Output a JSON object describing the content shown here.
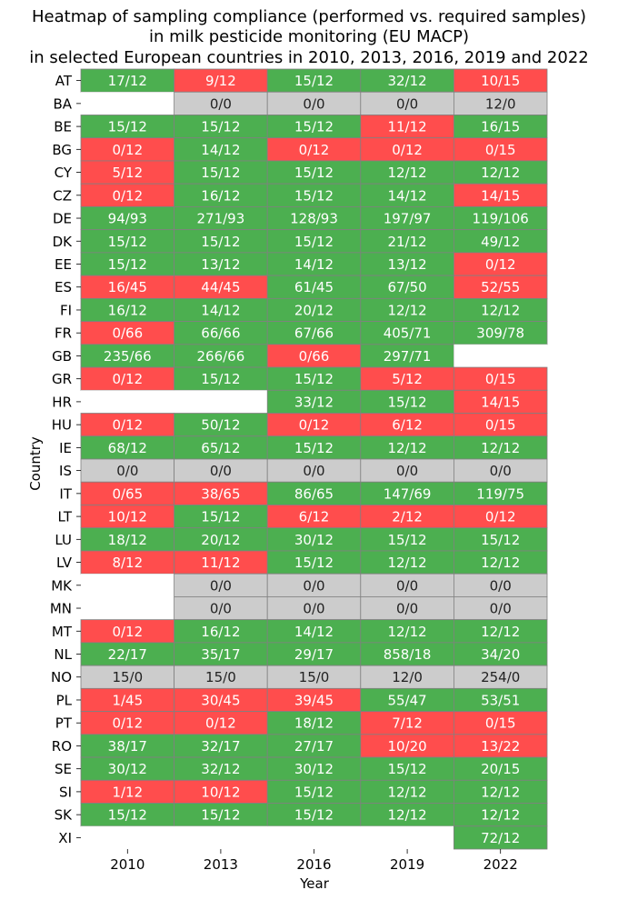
{
  "chart_data": {
    "type": "heatmap",
    "title_lines": [
      "Heatmap of sampling compliance (performed vs. required samples)",
      "in milk pesticide monitoring (EU MACP)",
      "in selected European countries in 2010, 2013, 2016, 2019 and 2022"
    ],
    "xlabel": "Year",
    "ylabel": "Country",
    "x_categories": [
      "2010",
      "2013",
      "2016",
      "2019",
      "2022"
    ],
    "y_categories": [
      "AT",
      "BA",
      "BE",
      "BG",
      "CY",
      "CZ",
      "DE",
      "DK",
      "EE",
      "ES",
      "FI",
      "FR",
      "GB",
      "GR",
      "HR",
      "HU",
      "IE",
      "IS",
      "IT",
      "LT",
      "LU",
      "LV",
      "MK",
      "MN",
      "MT",
      "NL",
      "NO",
      "PL",
      "PT",
      "RO",
      "SE",
      "SI",
      "SK",
      "XI"
    ],
    "colors": {
      "compliant": "#4caf50",
      "non_compliant": "#ff4d4d",
      "not_required": "#cccccc",
      "missing": "#ffffff",
      "grid_line": "#808080",
      "text_light": "#ffffff",
      "text_dark": "#222222"
    },
    "legend": "none",
    "rows": [
      {
        "country": "AT",
        "cells": [
          {
            "label": "17/12",
            "status": "compliant"
          },
          {
            "label": "9/12",
            "status": "non_compliant"
          },
          {
            "label": "15/12",
            "status": "compliant"
          },
          {
            "label": "32/12",
            "status": "compliant"
          },
          {
            "label": "10/15",
            "status": "non_compliant"
          }
        ]
      },
      {
        "country": "BA",
        "cells": [
          {
            "label": "",
            "status": "missing"
          },
          {
            "label": "0/0",
            "status": "not_required"
          },
          {
            "label": "0/0",
            "status": "not_required"
          },
          {
            "label": "0/0",
            "status": "not_required"
          },
          {
            "label": "12/0",
            "status": "not_required"
          }
        ]
      },
      {
        "country": "BE",
        "cells": [
          {
            "label": "15/12",
            "status": "compliant"
          },
          {
            "label": "15/12",
            "status": "compliant"
          },
          {
            "label": "15/12",
            "status": "compliant"
          },
          {
            "label": "11/12",
            "status": "non_compliant"
          },
          {
            "label": "16/15",
            "status": "compliant"
          }
        ]
      },
      {
        "country": "BG",
        "cells": [
          {
            "label": "0/12",
            "status": "non_compliant"
          },
          {
            "label": "14/12",
            "status": "compliant"
          },
          {
            "label": "0/12",
            "status": "non_compliant"
          },
          {
            "label": "0/12",
            "status": "non_compliant"
          },
          {
            "label": "0/15",
            "status": "non_compliant"
          }
        ]
      },
      {
        "country": "CY",
        "cells": [
          {
            "label": "5/12",
            "status": "non_compliant"
          },
          {
            "label": "15/12",
            "status": "compliant"
          },
          {
            "label": "15/12",
            "status": "compliant"
          },
          {
            "label": "12/12",
            "status": "compliant"
          },
          {
            "label": "12/12",
            "status": "compliant"
          }
        ]
      },
      {
        "country": "CZ",
        "cells": [
          {
            "label": "0/12",
            "status": "non_compliant"
          },
          {
            "label": "16/12",
            "status": "compliant"
          },
          {
            "label": "15/12",
            "status": "compliant"
          },
          {
            "label": "14/12",
            "status": "compliant"
          },
          {
            "label": "14/15",
            "status": "non_compliant"
          }
        ]
      },
      {
        "country": "DE",
        "cells": [
          {
            "label": "94/93",
            "status": "compliant"
          },
          {
            "label": "271/93",
            "status": "compliant"
          },
          {
            "label": "128/93",
            "status": "compliant"
          },
          {
            "label": "197/97",
            "status": "compliant"
          },
          {
            "label": "119/106",
            "status": "compliant"
          }
        ]
      },
      {
        "country": "DK",
        "cells": [
          {
            "label": "15/12",
            "status": "compliant"
          },
          {
            "label": "15/12",
            "status": "compliant"
          },
          {
            "label": "15/12",
            "status": "compliant"
          },
          {
            "label": "21/12",
            "status": "compliant"
          },
          {
            "label": "49/12",
            "status": "compliant"
          }
        ]
      },
      {
        "country": "EE",
        "cells": [
          {
            "label": "15/12",
            "status": "compliant"
          },
          {
            "label": "13/12",
            "status": "compliant"
          },
          {
            "label": "14/12",
            "status": "compliant"
          },
          {
            "label": "13/12",
            "status": "compliant"
          },
          {
            "label": "0/12",
            "status": "non_compliant"
          }
        ]
      },
      {
        "country": "ES",
        "cells": [
          {
            "label": "16/45",
            "status": "non_compliant"
          },
          {
            "label": "44/45",
            "status": "non_compliant"
          },
          {
            "label": "61/45",
            "status": "compliant"
          },
          {
            "label": "67/50",
            "status": "compliant"
          },
          {
            "label": "52/55",
            "status": "non_compliant"
          }
        ]
      },
      {
        "country": "FI",
        "cells": [
          {
            "label": "16/12",
            "status": "compliant"
          },
          {
            "label": "14/12",
            "status": "compliant"
          },
          {
            "label": "20/12",
            "status": "compliant"
          },
          {
            "label": "12/12",
            "status": "compliant"
          },
          {
            "label": "12/12",
            "status": "compliant"
          }
        ]
      },
      {
        "country": "FR",
        "cells": [
          {
            "label": "0/66",
            "status": "non_compliant"
          },
          {
            "label": "66/66",
            "status": "compliant"
          },
          {
            "label": "67/66",
            "status": "compliant"
          },
          {
            "label": "405/71",
            "status": "compliant"
          },
          {
            "label": "309/78",
            "status": "compliant"
          }
        ]
      },
      {
        "country": "GB",
        "cells": [
          {
            "label": "235/66",
            "status": "compliant"
          },
          {
            "label": "266/66",
            "status": "compliant"
          },
          {
            "label": "0/66",
            "status": "non_compliant"
          },
          {
            "label": "297/71",
            "status": "compliant"
          },
          {
            "label": "",
            "status": "missing"
          }
        ]
      },
      {
        "country": "GR",
        "cells": [
          {
            "label": "0/12",
            "status": "non_compliant"
          },
          {
            "label": "15/12",
            "status": "compliant"
          },
          {
            "label": "15/12",
            "status": "compliant"
          },
          {
            "label": "5/12",
            "status": "non_compliant"
          },
          {
            "label": "0/15",
            "status": "non_compliant"
          }
        ]
      },
      {
        "country": "HR",
        "cells": [
          {
            "label": "",
            "status": "missing"
          },
          {
            "label": "",
            "status": "missing"
          },
          {
            "label": "33/12",
            "status": "compliant"
          },
          {
            "label": "15/12",
            "status": "compliant"
          },
          {
            "label": "14/15",
            "status": "non_compliant"
          }
        ]
      },
      {
        "country": "HU",
        "cells": [
          {
            "label": "0/12",
            "status": "non_compliant"
          },
          {
            "label": "50/12",
            "status": "compliant"
          },
          {
            "label": "0/12",
            "status": "non_compliant"
          },
          {
            "label": "6/12",
            "status": "non_compliant"
          },
          {
            "label": "0/15",
            "status": "non_compliant"
          }
        ]
      },
      {
        "country": "IE",
        "cells": [
          {
            "label": "68/12",
            "status": "compliant"
          },
          {
            "label": "65/12",
            "status": "compliant"
          },
          {
            "label": "15/12",
            "status": "compliant"
          },
          {
            "label": "12/12",
            "status": "compliant"
          },
          {
            "label": "12/12",
            "status": "compliant"
          }
        ]
      },
      {
        "country": "IS",
        "cells": [
          {
            "label": "0/0",
            "status": "not_required"
          },
          {
            "label": "0/0",
            "status": "not_required"
          },
          {
            "label": "0/0",
            "status": "not_required"
          },
          {
            "label": "0/0",
            "status": "not_required"
          },
          {
            "label": "0/0",
            "status": "not_required"
          }
        ]
      },
      {
        "country": "IT",
        "cells": [
          {
            "label": "0/65",
            "status": "non_compliant"
          },
          {
            "label": "38/65",
            "status": "non_compliant"
          },
          {
            "label": "86/65",
            "status": "compliant"
          },
          {
            "label": "147/69",
            "status": "compliant"
          },
          {
            "label": "119/75",
            "status": "compliant"
          }
        ]
      },
      {
        "country": "LT",
        "cells": [
          {
            "label": "10/12",
            "status": "non_compliant"
          },
          {
            "label": "15/12",
            "status": "compliant"
          },
          {
            "label": "6/12",
            "status": "non_compliant"
          },
          {
            "label": "2/12",
            "status": "non_compliant"
          },
          {
            "label": "0/12",
            "status": "non_compliant"
          }
        ]
      },
      {
        "country": "LU",
        "cells": [
          {
            "label": "18/12",
            "status": "compliant"
          },
          {
            "label": "20/12",
            "status": "compliant"
          },
          {
            "label": "30/12",
            "status": "compliant"
          },
          {
            "label": "15/12",
            "status": "compliant"
          },
          {
            "label": "15/12",
            "status": "compliant"
          }
        ]
      },
      {
        "country": "LV",
        "cells": [
          {
            "label": "8/12",
            "status": "non_compliant"
          },
          {
            "label": "11/12",
            "status": "non_compliant"
          },
          {
            "label": "15/12",
            "status": "compliant"
          },
          {
            "label": "12/12",
            "status": "compliant"
          },
          {
            "label": "12/12",
            "status": "compliant"
          }
        ]
      },
      {
        "country": "MK",
        "cells": [
          {
            "label": "",
            "status": "missing"
          },
          {
            "label": "0/0",
            "status": "not_required"
          },
          {
            "label": "0/0",
            "status": "not_required"
          },
          {
            "label": "0/0",
            "status": "not_required"
          },
          {
            "label": "0/0",
            "status": "not_required"
          }
        ]
      },
      {
        "country": "MN",
        "cells": [
          {
            "label": "",
            "status": "missing"
          },
          {
            "label": "0/0",
            "status": "not_required"
          },
          {
            "label": "0/0",
            "status": "not_required"
          },
          {
            "label": "0/0",
            "status": "not_required"
          },
          {
            "label": "0/0",
            "status": "not_required"
          }
        ]
      },
      {
        "country": "MT",
        "cells": [
          {
            "label": "0/12",
            "status": "non_compliant"
          },
          {
            "label": "16/12",
            "status": "compliant"
          },
          {
            "label": "14/12",
            "status": "compliant"
          },
          {
            "label": "12/12",
            "status": "compliant"
          },
          {
            "label": "12/12",
            "status": "compliant"
          }
        ]
      },
      {
        "country": "NL",
        "cells": [
          {
            "label": "22/17",
            "status": "compliant"
          },
          {
            "label": "35/17",
            "status": "compliant"
          },
          {
            "label": "29/17",
            "status": "compliant"
          },
          {
            "label": "858/18",
            "status": "compliant"
          },
          {
            "label": "34/20",
            "status": "compliant"
          }
        ]
      },
      {
        "country": "NO",
        "cells": [
          {
            "label": "15/0",
            "status": "not_required"
          },
          {
            "label": "15/0",
            "status": "not_required"
          },
          {
            "label": "15/0",
            "status": "not_required"
          },
          {
            "label": "12/0",
            "status": "not_required"
          },
          {
            "label": "254/0",
            "status": "not_required"
          }
        ]
      },
      {
        "country": "PL",
        "cells": [
          {
            "label": "1/45",
            "status": "non_compliant"
          },
          {
            "label": "30/45",
            "status": "non_compliant"
          },
          {
            "label": "39/45",
            "status": "non_compliant"
          },
          {
            "label": "55/47",
            "status": "compliant"
          },
          {
            "label": "53/51",
            "status": "compliant"
          }
        ]
      },
      {
        "country": "PT",
        "cells": [
          {
            "label": "0/12",
            "status": "non_compliant"
          },
          {
            "label": "0/12",
            "status": "non_compliant"
          },
          {
            "label": "18/12",
            "status": "compliant"
          },
          {
            "label": "7/12",
            "status": "non_compliant"
          },
          {
            "label": "0/15",
            "status": "non_compliant"
          }
        ]
      },
      {
        "country": "RO",
        "cells": [
          {
            "label": "38/17",
            "status": "compliant"
          },
          {
            "label": "32/17",
            "status": "compliant"
          },
          {
            "label": "27/17",
            "status": "compliant"
          },
          {
            "label": "10/20",
            "status": "non_compliant"
          },
          {
            "label": "13/22",
            "status": "non_compliant"
          }
        ]
      },
      {
        "country": "SE",
        "cells": [
          {
            "label": "30/12",
            "status": "compliant"
          },
          {
            "label": "32/12",
            "status": "compliant"
          },
          {
            "label": "30/12",
            "status": "compliant"
          },
          {
            "label": "15/12",
            "status": "compliant"
          },
          {
            "label": "20/15",
            "status": "compliant"
          }
        ]
      },
      {
        "country": "SI",
        "cells": [
          {
            "label": "1/12",
            "status": "non_compliant"
          },
          {
            "label": "10/12",
            "status": "non_compliant"
          },
          {
            "label": "15/12",
            "status": "compliant"
          },
          {
            "label": "12/12",
            "status": "compliant"
          },
          {
            "label": "12/12",
            "status": "compliant"
          }
        ]
      },
      {
        "country": "SK",
        "cells": [
          {
            "label": "15/12",
            "status": "compliant"
          },
          {
            "label": "15/12",
            "status": "compliant"
          },
          {
            "label": "15/12",
            "status": "compliant"
          },
          {
            "label": "12/12",
            "status": "compliant"
          },
          {
            "label": "12/12",
            "status": "compliant"
          }
        ]
      },
      {
        "country": "XI",
        "cells": [
          {
            "label": "",
            "status": "missing"
          },
          {
            "label": "",
            "status": "missing"
          },
          {
            "label": "",
            "status": "missing"
          },
          {
            "label": "",
            "status": "missing"
          },
          {
            "label": "72/12",
            "status": "compliant"
          }
        ]
      }
    ]
  }
}
